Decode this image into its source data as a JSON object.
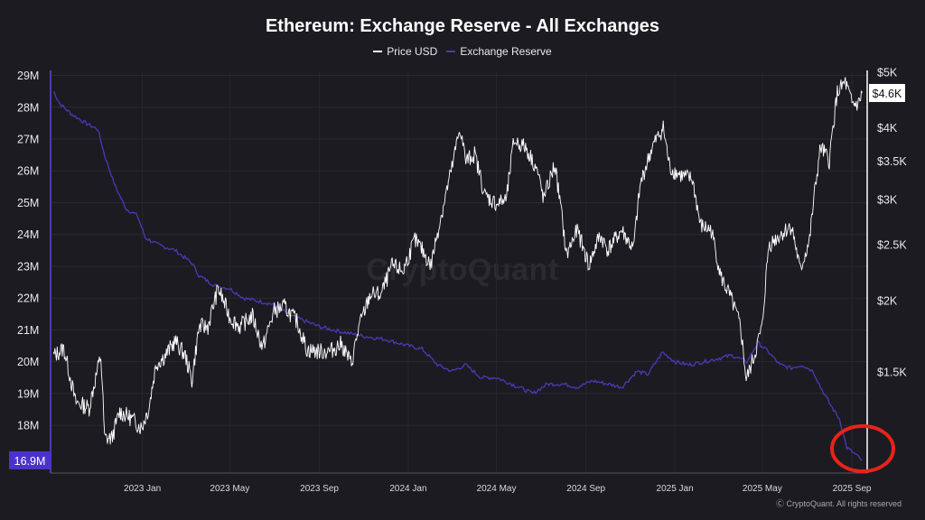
{
  "title": "Ethereum: Exchange Reserve - All Exchanges",
  "watermark": "CryptoQuant",
  "copyright": "Ⓒ CryptoQuant. All rights reserved",
  "colors": {
    "background": "#1c1b21",
    "price": "#ffffff",
    "reserve": "#4a3aba",
    "reserve_badge": "#4b33c9",
    "highlight_circle": "#e8231a"
  },
  "chart_data": {
    "type": "line",
    "series": [
      {
        "name": "Price USD",
        "axis": "right",
        "points": [
          [
            "2022-09-01",
            1600
          ],
          [
            "2022-09-15",
            1650
          ],
          [
            "2022-10-01",
            1330
          ],
          [
            "2022-10-20",
            1300
          ],
          [
            "2022-11-05",
            1600
          ],
          [
            "2022-11-10",
            1150
          ],
          [
            "2022-11-20",
            1150
          ],
          [
            "2022-12-01",
            1280
          ],
          [
            "2022-12-15",
            1250
          ],
          [
            "2022-12-31",
            1200
          ],
          [
            "2023-01-10",
            1300
          ],
          [
            "2023-01-20",
            1550
          ],
          [
            "2023-02-01",
            1600
          ],
          [
            "2023-02-15",
            1700
          ],
          [
            "2023-03-01",
            1600
          ],
          [
            "2023-03-10",
            1450
          ],
          [
            "2023-03-20",
            1800
          ],
          [
            "2023-04-01",
            1800
          ],
          [
            "2023-04-15",
            2100
          ],
          [
            "2023-05-01",
            1870
          ],
          [
            "2023-05-15",
            1800
          ],
          [
            "2023-06-01",
            1880
          ],
          [
            "2023-06-15",
            1650
          ],
          [
            "2023-07-01",
            1920
          ],
          [
            "2023-07-15",
            1950
          ],
          [
            "2023-08-01",
            1840
          ],
          [
            "2023-08-15",
            1640
          ],
          [
            "2023-09-01",
            1630
          ],
          [
            "2023-09-15",
            1630
          ],
          [
            "2023-10-01",
            1680
          ],
          [
            "2023-10-15",
            1550
          ],
          [
            "2023-10-25",
            1790
          ],
          [
            "2023-11-10",
            2050
          ],
          [
            "2023-11-25",
            2050
          ],
          [
            "2023-12-10",
            2300
          ],
          [
            "2023-12-25",
            2250
          ],
          [
            "2024-01-10",
            2550
          ],
          [
            "2024-01-20",
            2450
          ],
          [
            "2024-02-01",
            2300
          ],
          [
            "2024-02-15",
            2800
          ],
          [
            "2024-03-01",
            3400
          ],
          [
            "2024-03-12",
            4000
          ],
          [
            "2024-03-20",
            3500
          ],
          [
            "2024-04-01",
            3600
          ],
          [
            "2024-04-15",
            3050
          ],
          [
            "2024-05-01",
            2950
          ],
          [
            "2024-05-15",
            3000
          ],
          [
            "2024-05-25",
            3800
          ],
          [
            "2024-06-10",
            3700
          ],
          [
            "2024-06-25",
            3400
          ],
          [
            "2024-07-05",
            3000
          ],
          [
            "2024-07-20",
            3450
          ],
          [
            "2024-08-05",
            2400
          ],
          [
            "2024-08-20",
            2650
          ],
          [
            "2024-09-05",
            2300
          ],
          [
            "2024-09-20",
            2600
          ],
          [
            "2024-10-01",
            2450
          ],
          [
            "2024-10-20",
            2650
          ],
          [
            "2024-11-05",
            2450
          ],
          [
            "2024-11-15",
            3200
          ],
          [
            "2024-12-01",
            3700
          ],
          [
            "2024-12-16",
            4000
          ],
          [
            "2024-12-25",
            3400
          ],
          [
            "2025-01-10",
            3300
          ],
          [
            "2025-01-25",
            3250
          ],
          [
            "2025-02-05",
            2700
          ],
          [
            "2025-02-20",
            2650
          ],
          [
            "2025-03-05",
            2200
          ],
          [
            "2025-03-20",
            2000
          ],
          [
            "2025-04-01",
            1800
          ],
          [
            "2025-04-09",
            1450
          ],
          [
            "2025-04-20",
            1600
          ],
          [
            "2025-05-01",
            1800
          ],
          [
            "2025-05-10",
            2500
          ],
          [
            "2025-05-25",
            2600
          ],
          [
            "2025-06-10",
            2700
          ],
          [
            "2025-06-22",
            2250
          ],
          [
            "2025-07-05",
            2550
          ],
          [
            "2025-07-20",
            3700
          ],
          [
            "2025-08-01",
            3500
          ],
          [
            "2025-08-12",
            4600
          ],
          [
            "2025-08-23",
            4800
          ],
          [
            "2025-09-01",
            4400
          ],
          [
            "2025-09-10",
            4400
          ],
          [
            "2025-09-15",
            4600
          ]
        ],
        "last_value_label": "$4.6K"
      },
      {
        "name": "Exchange Reserve",
        "axis": "left",
        "points": [
          [
            "2022-09-01",
            28.5
          ],
          [
            "2022-09-10",
            28.1
          ],
          [
            "2022-09-25",
            27.8
          ],
          [
            "2022-10-15",
            27.5
          ],
          [
            "2022-11-01",
            27.3
          ],
          [
            "2022-11-10",
            26.5
          ],
          [
            "2022-11-25",
            25.5
          ],
          [
            "2022-12-10",
            24.8
          ],
          [
            "2022-12-25",
            24.6
          ],
          [
            "2023-01-05",
            23.9
          ],
          [
            "2023-01-20",
            23.7
          ],
          [
            "2023-02-15",
            23.5
          ],
          [
            "2023-03-10",
            23.1
          ],
          [
            "2023-03-20",
            22.7
          ],
          [
            "2023-04-10",
            22.4
          ],
          [
            "2023-05-01",
            22.3
          ],
          [
            "2023-05-20",
            22.0
          ],
          [
            "2023-06-10",
            21.9
          ],
          [
            "2023-07-01",
            21.8
          ],
          [
            "2023-07-20",
            21.5
          ],
          [
            "2023-08-10",
            21.3
          ],
          [
            "2023-09-01",
            21.1
          ],
          [
            "2023-09-20",
            21.0
          ],
          [
            "2023-10-10",
            20.9
          ],
          [
            "2023-11-01",
            20.8
          ],
          [
            "2023-12-01",
            20.7
          ],
          [
            "2024-01-01",
            20.5
          ],
          [
            "2024-01-20",
            20.4
          ],
          [
            "2024-02-10",
            19.9
          ],
          [
            "2024-03-01",
            19.7
          ],
          [
            "2024-03-20",
            19.9
          ],
          [
            "2024-04-10",
            19.5
          ],
          [
            "2024-05-01",
            19.5
          ],
          [
            "2024-06-01",
            19.2
          ],
          [
            "2024-06-20",
            19.0
          ],
          [
            "2024-07-10",
            19.3
          ],
          [
            "2024-08-01",
            19.3
          ],
          [
            "2024-08-20",
            19.2
          ],
          [
            "2024-09-10",
            19.4
          ],
          [
            "2024-10-01",
            19.3
          ],
          [
            "2024-10-20",
            19.2
          ],
          [
            "2024-11-10",
            19.7
          ],
          [
            "2024-11-25",
            19.6
          ],
          [
            "2024-12-15",
            20.3
          ],
          [
            "2025-01-01",
            20.0
          ],
          [
            "2025-01-20",
            19.9
          ],
          [
            "2025-02-10",
            20.0
          ],
          [
            "2025-03-01",
            20.1
          ],
          [
            "2025-03-20",
            20.2
          ],
          [
            "2025-04-10",
            20.0
          ],
          [
            "2025-04-25",
            20.6
          ],
          [
            "2025-05-10",
            20.3
          ],
          [
            "2025-05-25",
            19.9
          ],
          [
            "2025-06-10",
            19.8
          ],
          [
            "2025-06-25",
            19.9
          ],
          [
            "2025-07-10",
            19.7
          ],
          [
            "2025-07-20",
            19.2
          ],
          [
            "2025-08-01",
            18.7
          ],
          [
            "2025-08-15",
            18.2
          ],
          [
            "2025-08-25",
            17.3
          ],
          [
            "2025-09-05",
            17.1
          ],
          [
            "2025-09-15",
            16.9
          ]
        ],
        "last_value_label": "16.9M"
      }
    ],
    "left_axis": {
      "ticks": [
        18,
        19,
        20,
        21,
        22,
        23,
        24,
        25,
        26,
        27,
        28,
        29
      ],
      "tick_labels": [
        "18M",
        "19M",
        "20M",
        "21M",
        "22M",
        "23M",
        "24M",
        "25M",
        "26M",
        "27M",
        "28M",
        "29M"
      ],
      "range": [
        16.5,
        29.1
      ]
    },
    "right_axis": {
      "scale": "log",
      "ticks": [
        1500,
        2000,
        2500,
        3000,
        3500,
        4000,
        5000
      ],
      "tick_labels": [
        "$1.5K",
        "$2K",
        "$2.5K",
        "$3K",
        "$3.5K",
        "$4K",
        "$5K"
      ],
      "range": [
        1000,
        5000
      ]
    },
    "x_axis": {
      "ticks": [
        "2023-01-01",
        "2023-05-01",
        "2023-09-01",
        "2024-01-01",
        "2024-05-01",
        "2024-09-01",
        "2025-01-01",
        "2025-05-01",
        "2025-09-01"
      ],
      "tick_labels": [
        "2023 Jan",
        "2023 May",
        "2023 Sep",
        "2024 Jan",
        "2024 May",
        "2024 Sep",
        "2025 Jan",
        "2025 May",
        "2025 Sep"
      ],
      "range": [
        "2022-08-28",
        "2025-09-22"
      ]
    },
    "grid": true,
    "legend_position": "top-center",
    "annotation": "red circle around the latest Exchange Reserve values"
  }
}
